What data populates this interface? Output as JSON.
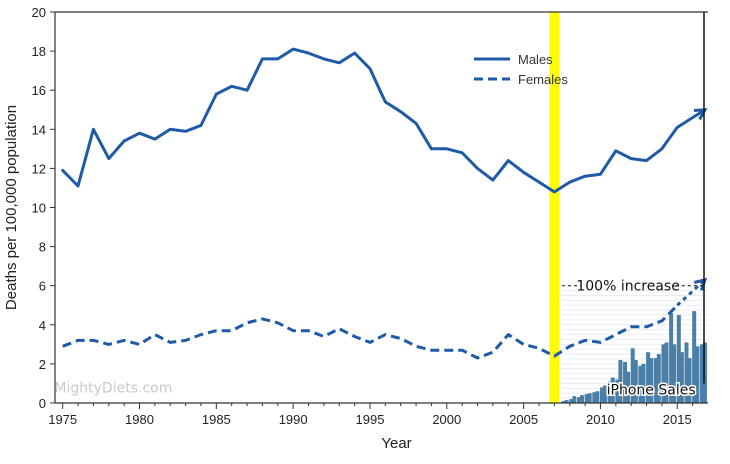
{
  "chart_data": {
    "type": "line",
    "xlabel": "Year",
    "ylabel": "Deaths per 100,000 population",
    "xlim": [
      1974.5,
      2017
    ],
    "ylim": [
      0,
      20
    ],
    "xticks": [
      1975,
      1980,
      1985,
      1990,
      1995,
      2000,
      2005,
      2010,
      2015
    ],
    "yticks": [
      0,
      2,
      4,
      6,
      8,
      10,
      12,
      14,
      16,
      18,
      20
    ],
    "legend": {
      "position": "top-right"
    },
    "series": [
      {
        "name": "Males",
        "style": "solid",
        "color": "#1f5aa6",
        "x": [
          1975,
          1976,
          1977,
          1978,
          1979,
          1980,
          1981,
          1982,
          1983,
          1984,
          1985,
          1986,
          1987,
          1988,
          1989,
          1990,
          1991,
          1992,
          1993,
          1994,
          1995,
          1996,
          1997,
          1998,
          1999,
          2000,
          2001,
          2002,
          2003,
          2004,
          2005,
          2006,
          2007,
          2008,
          2009,
          2010,
          2011,
          2012,
          2013,
          2014,
          2015
        ],
        "values": [
          11.9,
          11.1,
          14.0,
          12.5,
          13.4,
          13.8,
          13.5,
          14.0,
          13.9,
          14.2,
          15.8,
          16.2,
          16.0,
          17.6,
          17.6,
          18.1,
          17.9,
          17.6,
          17.4,
          17.9,
          17.1,
          15.4,
          14.9,
          14.3,
          13.0,
          13.0,
          12.8,
          12.0,
          11.4,
          12.4,
          11.8,
          11.3,
          10.8,
          11.3,
          11.6,
          11.7,
          12.9,
          12.5,
          12.4,
          13.0,
          14.1
        ]
      },
      {
        "name": "Females",
        "style": "dashed",
        "color": "#1f5aa6",
        "x": [
          1975,
          1976,
          1977,
          1978,
          1979,
          1980,
          1981,
          1982,
          1983,
          1984,
          1985,
          1986,
          1987,
          1988,
          1989,
          1990,
          1991,
          1992,
          1993,
          1994,
          1995,
          1996,
          1997,
          1998,
          1999,
          2000,
          2001,
          2002,
          2003,
          2004,
          2005,
          2006,
          2007,
          2008,
          2009,
          2010,
          2011,
          2012,
          2013,
          2014,
          2015
        ],
        "values": [
          2.9,
          3.2,
          3.2,
          3.0,
          3.2,
          3.0,
          3.5,
          3.1,
          3.2,
          3.5,
          3.7,
          3.7,
          4.1,
          4.3,
          4.1,
          3.7,
          3.7,
          3.4,
          3.8,
          3.4,
          3.1,
          3.5,
          3.3,
          2.9,
          2.7,
          2.7,
          2.7,
          2.3,
          2.6,
          3.5,
          3.0,
          2.8,
          2.4,
          2.9,
          3.2,
          3.1,
          3.5,
          3.9,
          3.9,
          4.2,
          5.0
        ]
      }
    ],
    "highlight": {
      "year": 2007,
      "color": "#ffff00"
    },
    "trend_arrows": [
      {
        "series": "Males",
        "from": [
          2015,
          14.1
        ],
        "to": [
          2016.8,
          15.0
        ]
      },
      {
        "series": "Females",
        "from": [
          2015,
          5.0
        ],
        "to": [
          2016.8,
          6.3
        ]
      }
    ],
    "annotations": [
      {
        "text": "100% increase",
        "x": 2011.8,
        "y": 6.0
      },
      {
        "text": "iPhone Sales",
        "x": 2013.3,
        "y": 0.7
      },
      {
        "text": "MightyDiets.com",
        "x": 1978.3,
        "y": 0.8
      }
    ],
    "iphone_sales_bars": {
      "color": "#4c7fa8",
      "x": [
        2007.6,
        2007.8,
        2008.1,
        2008.3,
        2008.6,
        2008.8,
        2009.1,
        2009.3,
        2009.6,
        2009.8,
        2010.1,
        2010.3,
        2010.6,
        2010.8,
        2011.1,
        2011.3,
        2011.6,
        2011.8,
        2012.1,
        2012.3,
        2012.6,
        2012.8,
        2013.1,
        2013.3,
        2013.6,
        2013.8,
        2014.1,
        2014.3,
        2014.6,
        2014.8,
        2015.1,
        2015.3,
        2015.6,
        2015.8,
        2016.1,
        2016.3,
        2016.6,
        2016.8
      ],
      "values": [
        0.1,
        0.15,
        0.2,
        0.35,
        0.3,
        0.4,
        0.45,
        0.5,
        0.55,
        0.6,
        0.8,
        0.9,
        1.1,
        1.3,
        1.2,
        2.2,
        2.1,
        1.6,
        2.8,
        2.2,
        1.9,
        2.0,
        2.6,
        2.3,
        2.3,
        2.5,
        3.0,
        3.1,
        4.6,
        3.0,
        4.5,
        2.6,
        3.1,
        2.3,
        4.7,
        2.9,
        3.0,
        3.1
      ]
    }
  }
}
